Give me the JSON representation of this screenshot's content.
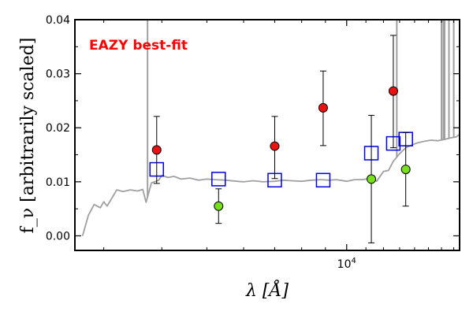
{
  "chart_data": {
    "type": "scatter",
    "title": "",
    "xlabel": "λ [Å]",
    "ylabel": "f_ν [arbitrarily scaled]",
    "x_scale": "log",
    "xlim": [
      2600,
      17500
    ],
    "ylim": [
      -0.0027,
      0.04
    ],
    "x_ticks": [
      {
        "value": 10000,
        "label": "10^4"
      }
    ],
    "y_ticks": [
      {
        "value": 0.0,
        "label": "0.00"
      },
      {
        "value": 0.01,
        "label": "0.01"
      },
      {
        "value": 0.02,
        "label": "0.02"
      },
      {
        "value": 0.03,
        "label": "0.03"
      },
      {
        "value": 0.04,
        "label": "0.04"
      }
    ],
    "annotation": {
      "text": "EAZY best-fit",
      "color": "#ff0000"
    },
    "colors": {
      "model": "#a0a0a0",
      "observed_detected": "#ee1111",
      "observed_low": "#77e01a",
      "model_photometry": "#0000dd"
    },
    "series": [
      {
        "kind": "sed-model-line",
        "x": [
          2700,
          2780,
          2860,
          2950,
          3000,
          3050,
          3150,
          3200,
          3300,
          3420,
          3550,
          3640,
          3700,
          3800,
          3940,
          4000,
          4120,
          4250,
          4400,
          4600,
          4800,
          5000,
          5200,
          5500,
          5800,
          6000,
          6300,
          6600,
          7000,
          7300,
          7600,
          8000,
          8400,
          8800,
          9200,
          9500,
          10000,
          10400,
          10800,
          11200,
          11600,
          12000,
          12300,
          12600,
          13000,
          13400,
          13800,
          14200,
          14700,
          15200,
          15700,
          16200,
          16700,
          17200,
          17500
        ],
        "y": [
          0.0,
          0.0038,
          0.0058,
          0.0052,
          0.0063,
          0.0055,
          0.0075,
          0.0085,
          0.0082,
          0.0085,
          0.0083,
          0.0086,
          0.0062,
          0.0098,
          0.0103,
          0.0112,
          0.0108,
          0.011,
          0.0105,
          0.0107,
          0.0103,
          0.0105,
          0.0104,
          0.0103,
          0.0101,
          0.01,
          0.0102,
          0.01,
          0.0101,
          0.0103,
          0.0102,
          0.0101,
          0.0103,
          0.0104,
          0.0103,
          0.0104,
          0.0101,
          0.0104,
          0.0104,
          0.0106,
          0.0101,
          0.0119,
          0.0121,
          0.0138,
          0.0152,
          0.0163,
          0.0168,
          0.0172,
          0.0175,
          0.0177,
          0.0176,
          0.0178,
          0.0181,
          0.0183,
          0.0188
        ]
      },
      {
        "kind": "model-emission-lines",
        "x": [
          3727,
          12820,
          16000,
          16150,
          16250,
          16600,
          17000
        ],
        "y_top": [
          0.04,
          0.04,
          0.04,
          0.04,
          0.04,
          0.04,
          0.04
        ]
      },
      {
        "kind": "model-photometry",
        "marker": "open-square",
        "x": [
          3900,
          5300,
          7000,
          8900,
          11300,
          12600,
          13400
        ],
        "y": [
          0.0123,
          0.0105,
          0.0103,
          0.0103,
          0.0153,
          0.0171,
          0.0179
        ]
      },
      {
        "kind": "observed-photometry",
        "marker": "filled-circle",
        "x": [
          3900,
          5300,
          7000,
          8900,
          11300,
          12600,
          13400
        ],
        "y": [
          0.0159,
          0.0055,
          0.0166,
          0.0237,
          0.0105,
          0.0268,
          0.0123
        ],
        "yerr_low": [
          0.0062,
          0.0032,
          0.006,
          0.007,
          0.0118,
          0.0105,
          0.0068
        ],
        "yerr_high": [
          0.0062,
          0.0032,
          0.0055,
          0.0068,
          0.0118,
          0.0103,
          0.0068
        ],
        "detected": [
          true,
          false,
          true,
          true,
          false,
          true,
          false
        ]
      }
    ]
  }
}
